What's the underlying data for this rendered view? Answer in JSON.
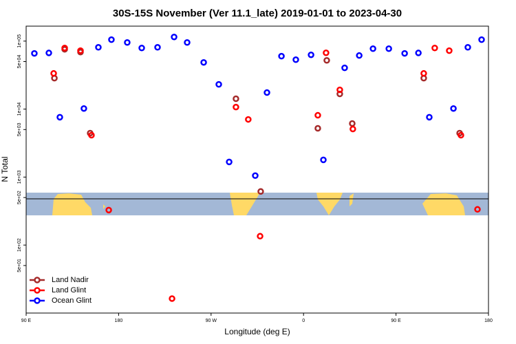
{
  "chart_data": {
    "type": "scatter",
    "title": "30S-15S November (Ver 11.1_late)   2019-01-01 to 2023-04-30",
    "x_label": "Longitude (deg E)",
    "y_label": "N Total",
    "xlim": [
      90,
      540
    ],
    "ylim": [
      10,
      166000
    ],
    "log_y": true,
    "xticks": [
      {
        "value": 90,
        "label": "90 E"
      },
      180,
      {
        "value": 270,
        "label": "90 W"
      },
      {
        "value": 360,
        "label": "0"
      },
      {
        "value": 450,
        "label": "90 E"
      },
      {
        "value": 540,
        "label": "180"
      }
    ],
    "yticks": [
      {
        "value": 100000,
        "label": "1e+05"
      },
      {
        "value": 50000,
        "label": "5e+04"
      },
      {
        "value": 10000,
        "label": "1e+04"
      },
      {
        "value": 5000,
        "label": "5e+03"
      },
      {
        "value": 1000,
        "label": "1e+03"
      },
      {
        "value": 500,
        "label": "5e+02"
      },
      {
        "value": 100,
        "label": "1e+02"
      },
      {
        "value": 50,
        "label": "5e+01"
      }
    ],
    "legend": "bottomleft",
    "series": [
      {
        "name": "Land Nadir",
        "color": "#a52a2a",
        "x": [
          117.5,
          127.5,
          142.9,
          152.3,
          294.2,
          318.3,
          373.9,
          382.6,
          395.3,
          407.4,
          477.0,
          511.9
        ],
        "values": [
          28500,
          75700,
          68900,
          4430,
          14200,
          614,
          5210,
          52100,
          16700,
          6140,
          28500,
          4430
        ]
      },
      {
        "name": "Land Glint",
        "color": "#ff0000",
        "x": [
          116.8,
          127.5,
          142.9,
          153.6,
          170.4,
          232.0,
          294.2,
          306.2,
          317.7,
          373.9,
          381.9,
          395.3,
          408.0,
          477.0,
          487.7,
          501.8,
          513.2,
          529.3
        ],
        "values": [
          33500,
          79200,
          72300,
          4130,
          327,
          16.3,
          10700,
          7050,
          135,
          8110,
          67300,
          19200,
          5090,
          33500,
          79200,
          72300,
          4130,
          335
        ]
      },
      {
        "name": "Ocean Glint",
        "color": "#0000ff",
        "x": [
          98.0,
          112.1,
          122.8,
          146.2,
          160.3,
          173.0,
          188.4,
          202.5,
          217.9,
          234.0,
          246.7,
          262.8,
          277.5,
          287.6,
          313.0,
          324.4,
          338.5,
          352.5,
          367.3,
          379.3,
          400.0,
          414.2,
          427.6,
          443.0,
          458.4,
          471.8,
          482.4,
          505.9,
          519.9,
          533.3
        ],
        "values": [
          66000,
          67000,
          7600,
          10200,
          81000,
          105000,
          95500,
          79200,
          81000,
          115000,
          95500,
          48600,
          23100,
          1670,
          1050,
          17500,
          60000,
          53300,
          62800,
          1790,
          40400,
          61400,
          77400,
          77400,
          66000,
          67000,
          7600,
          10200,
          81000,
          105000
        ]
      }
    ]
  }
}
